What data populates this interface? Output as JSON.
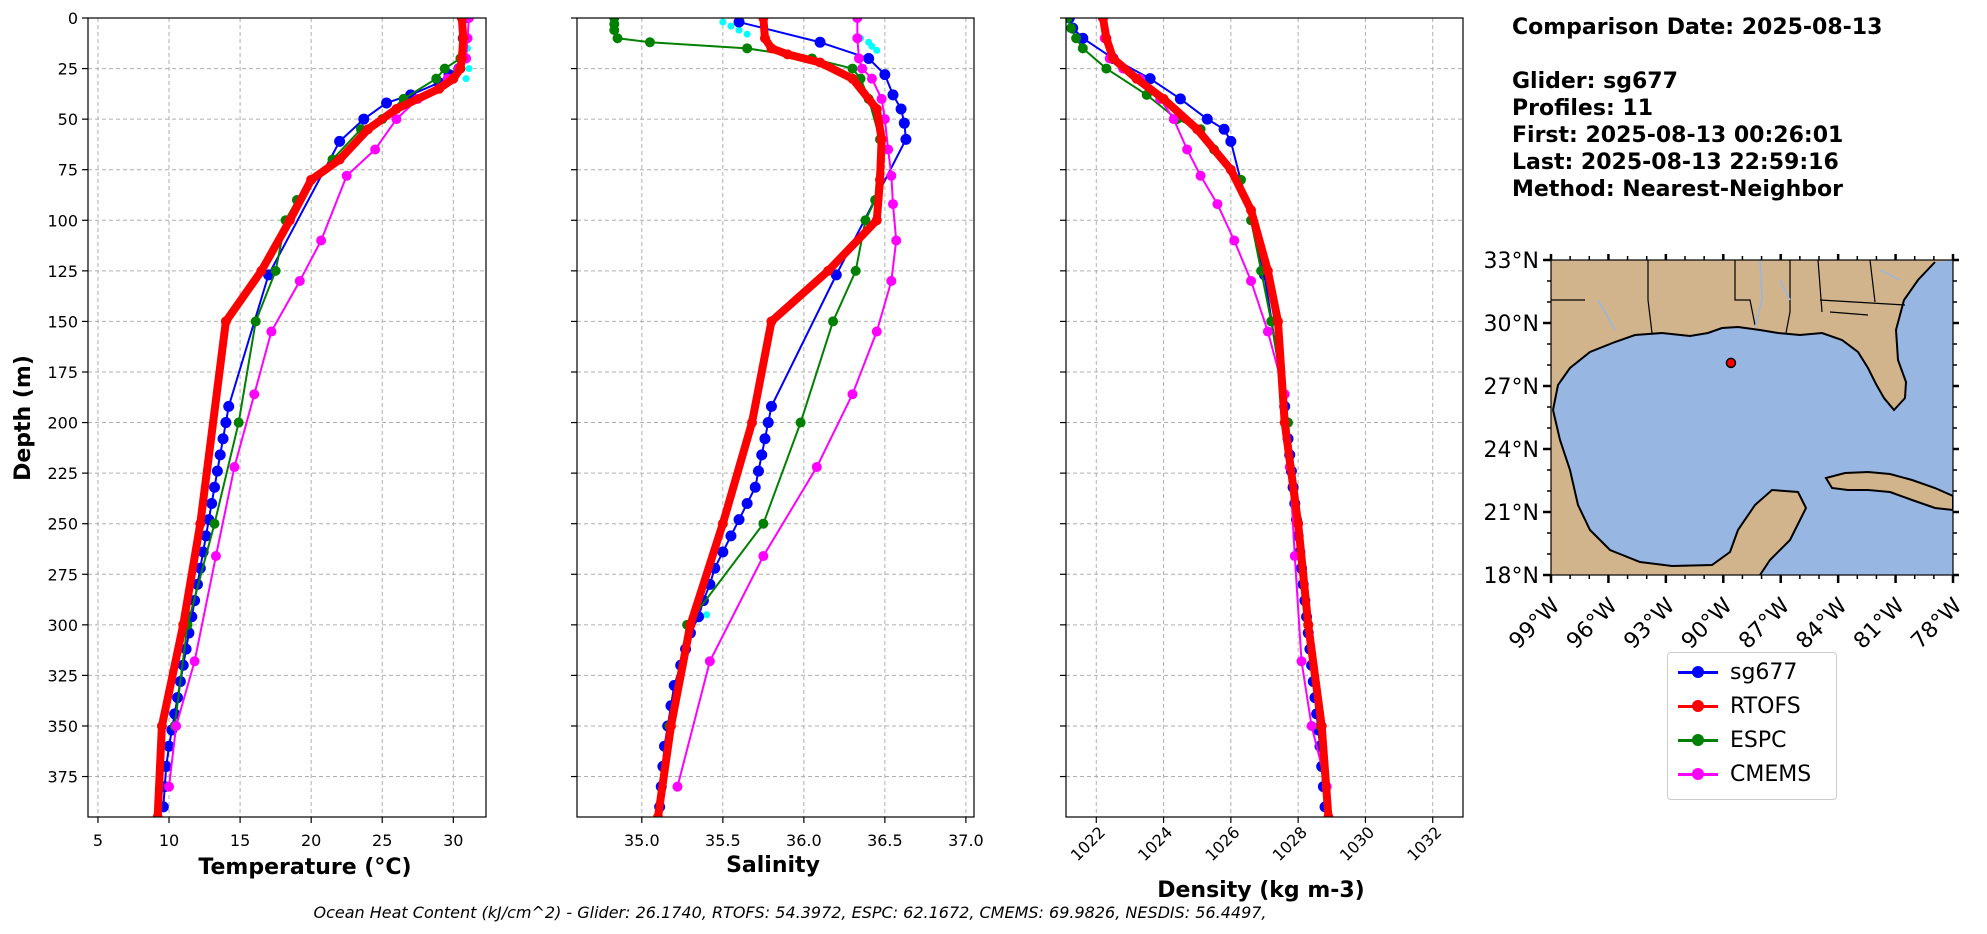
{
  "chart_data": [
    {
      "type": "line",
      "xlabel": "Temperature (°C)",
      "ylabel": "Depth (m)",
      "xlim": [
        4.3,
        32.3
      ],
      "ylim": [
        395,
        0
      ],
      "xticks": [
        5,
        10,
        15,
        20,
        25,
        30
      ],
      "yticks": [
        0,
        25,
        50,
        75,
        100,
        125,
        150,
        175,
        200,
        225,
        250,
        275,
        300,
        325,
        350,
        375
      ],
      "grid": true,
      "series": [
        {
          "name": "sg677",
          "color": "#0000ff",
          "x": [
            30.8,
            30.7,
            30.6,
            30.4,
            29.7,
            29.0,
            27.0,
            25.3,
            23.7,
            22.0,
            17.0,
            14.2,
            14.0,
            13.8,
            13.6,
            13.4,
            13.2,
            13.0,
            12.8,
            12.6,
            12.4,
            12.2,
            12.0,
            11.8,
            11.6,
            11.4,
            11.2,
            11.0,
            10.8,
            10.6,
            10.4,
            10.2,
            10.0,
            9.8,
            9.7,
            9.6
          ],
          "y": [
            0,
            10,
            20,
            25,
            28,
            32,
            38,
            42,
            50,
            61,
            127,
            192,
            200,
            208,
            216,
            224,
            232,
            240,
            248,
            256,
            264,
            272,
            280,
            288,
            296,
            304,
            312,
            320,
            328,
            336,
            344,
            352,
            360,
            370,
            380,
            390
          ]
        },
        {
          "name": "sg677 (raw)",
          "color": "#00ffff",
          "x": [
            30.6,
            30.8,
            31.0,
            30.7,
            31.1,
            30.9
          ],
          "y": [
            5,
            10,
            15,
            20,
            25,
            30
          ]
        },
        {
          "name": "RTOFS",
          "color": "#ff0000",
          "x": [
            30.6,
            30.7,
            30.6,
            30.5,
            30.0,
            29.0,
            26.0,
            24.0,
            22.0,
            20.0,
            18.5,
            16.5,
            14.0,
            12.2,
            11.0,
            9.5,
            9.2
          ],
          "y": [
            0,
            10,
            20,
            25,
            30,
            35,
            45,
            55,
            70,
            80,
            100,
            125,
            150,
            250,
            300,
            350,
            395
          ]
        },
        {
          "name": "ESPC",
          "color": "#008000",
          "x": [
            30.8,
            30.7,
            30.5,
            29.4,
            28.8,
            26.5,
            25.0,
            23.5,
            21.5,
            19.0,
            18.2,
            17.5,
            16.1,
            14.9,
            13.2,
            11.3,
            10.4
          ],
          "y": [
            0,
            10,
            20,
            25,
            30,
            40,
            50,
            55,
            70,
            90,
            100,
            125,
            150,
            200,
            250,
            300,
            350
          ]
        },
        {
          "name": "CMEMS",
          "color": "#ff00ff",
          "x": [
            31.1,
            31.0,
            30.9,
            30.4,
            29.6,
            27.5,
            26.0,
            24.5,
            22.5,
            20.7,
            19.2,
            17.2,
            16.0,
            14.6,
            13.3,
            11.8,
            10.5,
            10.0
          ],
          "y": [
            0,
            10,
            20,
            25,
            30,
            40,
            50,
            65,
            78,
            110,
            130,
            155,
            186,
            222,
            266,
            318,
            350,
            380
          ]
        }
      ]
    },
    {
      "type": "line",
      "xlabel": "Salinity",
      "xlim": [
        34.6,
        37.05
      ],
      "ylim": [
        395,
        0
      ],
      "xticks": [
        "35.0",
        "35.5",
        "36.0",
        "36.5",
        "37.0"
      ],
      "yticks": [
        0,
        25,
        50,
        75,
        100,
        125,
        150,
        175,
        200,
        225,
        250,
        275,
        300,
        325,
        350,
        375
      ],
      "grid": true,
      "series": [
        {
          "name": "sg677",
          "color": "#0000ff",
          "x": [
            35.6,
            36.1,
            36.4,
            36.5,
            36.55,
            36.6,
            36.62,
            36.63,
            36.2,
            35.8,
            35.78,
            35.76,
            35.74,
            35.72,
            35.7,
            35.65,
            35.6,
            35.55,
            35.5,
            35.45,
            35.42,
            35.38,
            35.35,
            35.3,
            35.27,
            35.24,
            35.2,
            35.18,
            35.16,
            35.14,
            35.13,
            35.12,
            35.11
          ],
          "y": [
            2,
            12,
            20,
            28,
            38,
            45,
            52,
            60,
            127,
            192,
            200,
            208,
            216,
            224,
            232,
            240,
            248,
            256,
            264,
            272,
            280,
            288,
            296,
            304,
            312,
            320,
            330,
            340,
            350,
            360,
            370,
            380,
            390
          ]
        },
        {
          "name": "sg677 (raw)",
          "color": "#00ffff",
          "x": [
            35.5,
            35.55,
            35.6,
            35.65,
            36.35,
            36.4,
            36.42,
            36.45,
            35.4
          ],
          "y": [
            2,
            4,
            6,
            8,
            10,
            12,
            14,
            16,
            295
          ]
        },
        {
          "name": "RTOFS",
          "color": "#ff0000",
          "x": [
            35.75,
            35.76,
            35.8,
            35.9,
            36.1,
            36.3,
            36.45,
            36.48,
            36.47,
            36.45,
            36.15,
            35.8,
            35.68,
            35.5,
            35.3,
            35.18,
            35.1
          ],
          "y": [
            0,
            10,
            15,
            18,
            22,
            30,
            45,
            60,
            80,
            100,
            125,
            150,
            200,
            250,
            300,
            350,
            395
          ]
        },
        {
          "name": "ESPC",
          "color": "#008000",
          "x": [
            34.83,
            34.83,
            34.83,
            34.85,
            35.05,
            35.65,
            36.05,
            36.3,
            36.35,
            36.4,
            36.47,
            36.44,
            36.38,
            36.32,
            36.18,
            35.98,
            35.75,
            35.28,
            35.17
          ],
          "y": [
            0,
            3,
            6,
            10,
            12,
            15,
            20,
            25,
            30,
            40,
            60,
            90,
            100,
            125,
            150,
            200,
            250,
            300,
            350
          ]
        },
        {
          "name": "CMEMS",
          "color": "#ff00ff",
          "x": [
            36.33,
            36.33,
            36.34,
            36.36,
            36.42,
            36.48,
            36.5,
            36.52,
            36.54,
            36.55,
            36.57,
            36.54,
            36.45,
            36.3,
            36.08,
            35.75,
            35.42,
            35.22
          ],
          "y": [
            0,
            10,
            20,
            25,
            30,
            40,
            50,
            65,
            78,
            92,
            110,
            130,
            155,
            186,
            222,
            266,
            318,
            380
          ]
        }
      ]
    },
    {
      "type": "line",
      "xlabel": "Density (kg m-3)",
      "xlim": [
        1021.1,
        1032.9
      ],
      "ylim": [
        395,
        0
      ],
      "xticks": [
        "1022",
        "1024",
        "1026",
        "1028",
        "1030",
        "1032"
      ],
      "yticks": [
        0,
        25,
        50,
        75,
        100,
        125,
        150,
        175,
        200,
        225,
        250,
        275,
        300,
        325,
        350,
        375
      ],
      "grid": true,
      "series": [
        {
          "name": "sg677",
          "color": "#0000ff",
          "x": [
            1021.2,
            1021.3,
            1021.6,
            1022.5,
            1023.6,
            1024.5,
            1025.3,
            1025.8,
            1026.0,
            1027.0,
            1027.6,
            1027.65,
            1027.7,
            1027.75,
            1027.8,
            1027.85,
            1027.9,
            1027.95,
            1028.0,
            1028.05,
            1028.1,
            1028.15,
            1028.2,
            1028.25,
            1028.3,
            1028.35,
            1028.4,
            1028.45,
            1028.5,
            1028.55,
            1028.6,
            1028.65,
            1028.7,
            1028.75,
            1028.8
          ],
          "y": [
            0,
            5,
            10,
            20,
            30,
            40,
            50,
            55,
            61,
            127,
            192,
            200,
            208,
            216,
            224,
            232,
            240,
            248,
            256,
            264,
            272,
            280,
            288,
            296,
            304,
            312,
            320,
            328,
            336,
            344,
            352,
            360,
            370,
            380,
            390
          ]
        },
        {
          "name": "RTOFS",
          "color": "#ff0000",
          "x": [
            1022.2,
            1022.3,
            1022.5,
            1023.2,
            1024.0,
            1025.0,
            1026.0,
            1026.6,
            1027.1,
            1027.4,
            1027.6,
            1028.0,
            1028.3,
            1028.7,
            1028.9
          ],
          "y": [
            0,
            10,
            20,
            30,
            40,
            55,
            75,
            95,
            125,
            150,
            200,
            250,
            300,
            350,
            395
          ]
        },
        {
          "name": "ESPC",
          "color": "#008000",
          "x": [
            1021.15,
            1021.25,
            1021.4,
            1021.6,
            1022.3,
            1023.5,
            1024.4,
            1025.1,
            1025.5,
            1026.3,
            1026.6,
            1026.9,
            1027.2,
            1027.7,
            1028.0,
            1028.3,
            1028.65
          ],
          "y": [
            0,
            5,
            10,
            15,
            25,
            38,
            50,
            55,
            65,
            80,
            100,
            125,
            150,
            200,
            250,
            300,
            350
          ]
        },
        {
          "name": "CMEMS",
          "color": "#ff00ff",
          "x": [
            1022.2,
            1022.25,
            1022.4,
            1022.8,
            1023.3,
            1023.9,
            1024.3,
            1024.7,
            1025.1,
            1025.6,
            1026.1,
            1026.6,
            1027.1,
            1027.6,
            1027.75,
            1027.9,
            1028.1,
            1028.4,
            1028.85
          ],
          "y": [
            0,
            10,
            20,
            25,
            30,
            40,
            50,
            65,
            78,
            92,
            110,
            130,
            155,
            186,
            222,
            266,
            318,
            350,
            380
          ]
        }
      ]
    }
  ],
  "info": {
    "date": "Comparison Date: 2025-08-13",
    "glider": "Glider: sg677",
    "profiles": "Profiles: 11",
    "first": "First: 2025-08-13 00:26:01",
    "last": "Last: 2025-08-13 22:59:16",
    "method": "Method: Nearest-Neighbor"
  },
  "map": {
    "lat_labels": [
      "33°N",
      "30°N",
      "27°N",
      "24°N",
      "21°N",
      "18°N"
    ],
    "lon_labels": [
      "99°W",
      "96°W",
      "93°W",
      "90°W",
      "87°W",
      "84°W",
      "81°W",
      "78°W"
    ],
    "land_color": "#d2b48c",
    "ocean_color": "#97b6e1",
    "marker": {
      "lon": -89.6,
      "lat": 28.1,
      "color": "#ff0000"
    }
  },
  "legend": [
    {
      "label": "sg677",
      "color": "#0000ff"
    },
    {
      "label": "RTOFS",
      "color": "#ff0000"
    },
    {
      "label": "ESPC",
      "color": "#008000"
    },
    {
      "label": "CMEMS",
      "color": "#ff00ff"
    }
  ],
  "footer": "Ocean Heat Content (kJ/cm^2) - Glider: 26.1740,  RTOFS: 54.3972,  ESPC: 62.1672,  CMEMS: 69.9826,  NESDIS: 56.4497,"
}
